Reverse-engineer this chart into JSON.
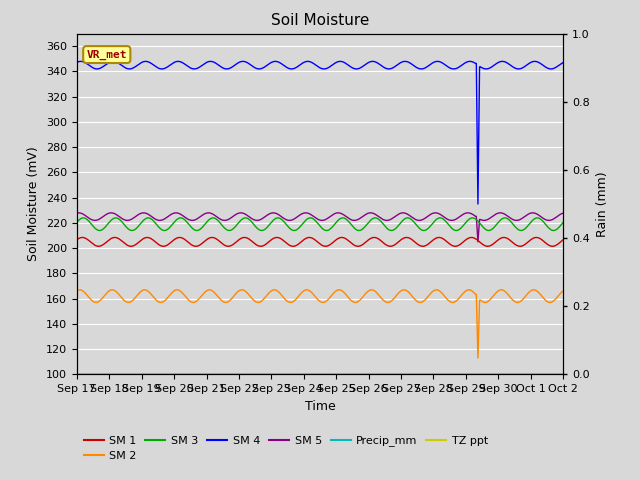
{
  "title": "Soil Moisture",
  "xlabel": "Time",
  "ylabel_left": "Soil Moisture (mV)",
  "ylabel_right": "Rain (mm)",
  "ylim_left": [
    100,
    370
  ],
  "ylim_right": [
    0.0,
    1.0
  ],
  "yticks_left": [
    100,
    120,
    140,
    160,
    180,
    200,
    220,
    240,
    260,
    280,
    300,
    320,
    340,
    360
  ],
  "yticks_right": [
    0.0,
    0.2,
    0.4,
    0.6,
    0.8,
    1.0
  ],
  "background_color": "#d8d8d8",
  "plot_bg_color": "#d8d8d8",
  "grid_color": "white",
  "n_points": 600,
  "sm1_base": 205,
  "sm1_amp": 3.5,
  "sm1_color": "#cc0000",
  "sm2_base": 162,
  "sm2_amp": 5,
  "sm2_color": "#ff8800",
  "sm3_base": 219,
  "sm3_amp": 5,
  "sm3_color": "#00aa00",
  "sm4_base": 345,
  "sm4_amp": 3,
  "sm4_color": "#0000ff",
  "sm5_base": 225,
  "sm5_amp": 3,
  "sm5_color": "#880088",
  "precip_color": "#00bbbb",
  "tz_ppt_color": "#cccc00",
  "spike_day": 12.35,
  "sm4_spike_val": 235,
  "sm5_spike_val": 205,
  "sm2_spike_val": 113,
  "vr_met_box_color": "#ffff99",
  "vr_met_text_color": "#990000",
  "legend_entries": [
    "SM 1",
    "SM 2",
    "SM 3",
    "SM 4",
    "SM 5",
    "Precip_mm",
    "TZ ppt"
  ],
  "legend_colors": [
    "#cc0000",
    "#ff8800",
    "#00aa00",
    "#0000ff",
    "#880088",
    "#00bbbb",
    "#cccc00"
  ],
  "xtick_labels": [
    "Sep 17",
    "Sep 18",
    "Sep 19",
    "Sep 20",
    "Sep 21",
    "Sep 22",
    "Sep 23",
    "Sep 24",
    "Sep 25",
    "Sep 26",
    "Sep 27",
    "Sep 28",
    "Sep 29",
    "Sep 30",
    "Oct 1",
    "Oct 2"
  ]
}
